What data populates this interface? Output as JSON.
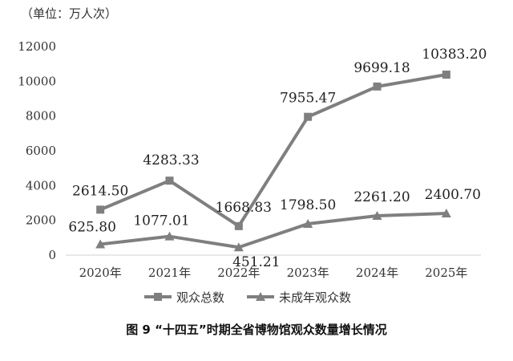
{
  "unit_label": "（单位：万人次）",
  "caption": "图 9 “十四五”时期全省博物馆观众数量增长情况",
  "legend": [
    {
      "label": "观众总数",
      "marker": "square"
    },
    {
      "label": "未成年观众数",
      "marker": "triangle"
    }
  ],
  "colors": {
    "series": "#7f7f7f",
    "axis": "#d0d0d0",
    "text": "#333333"
  },
  "chart_data": {
    "type": "line",
    "x": [
      "2020年",
      "2021年",
      "2022年",
      "2023年",
      "2024年",
      "2025年"
    ],
    "ylim": [
      0,
      12000
    ],
    "yticks": [
      0,
      2000,
      4000,
      6000,
      8000,
      10000,
      12000
    ],
    "grid": false,
    "legend_position": "bottom",
    "series": [
      {
        "name": "观众总数",
        "marker": "square",
        "values": [
          2614.5,
          4283.33,
          1668.83,
          7955.47,
          9699.18,
          10383.2
        ],
        "labels": [
          "2614.50",
          "4283.33",
          "1668.83",
          "7955.47",
          "9699.18",
          "10383.20"
        ]
      },
      {
        "name": "未成年观众数",
        "marker": "triangle",
        "values": [
          625.8,
          1077.01,
          451.21,
          1798.5,
          2261.2,
          2400.7
        ],
        "labels": [
          "625.80",
          "1077.01",
          "451.21",
          "1798.50",
          "2261.20",
          "2400.70"
        ]
      }
    ]
  }
}
